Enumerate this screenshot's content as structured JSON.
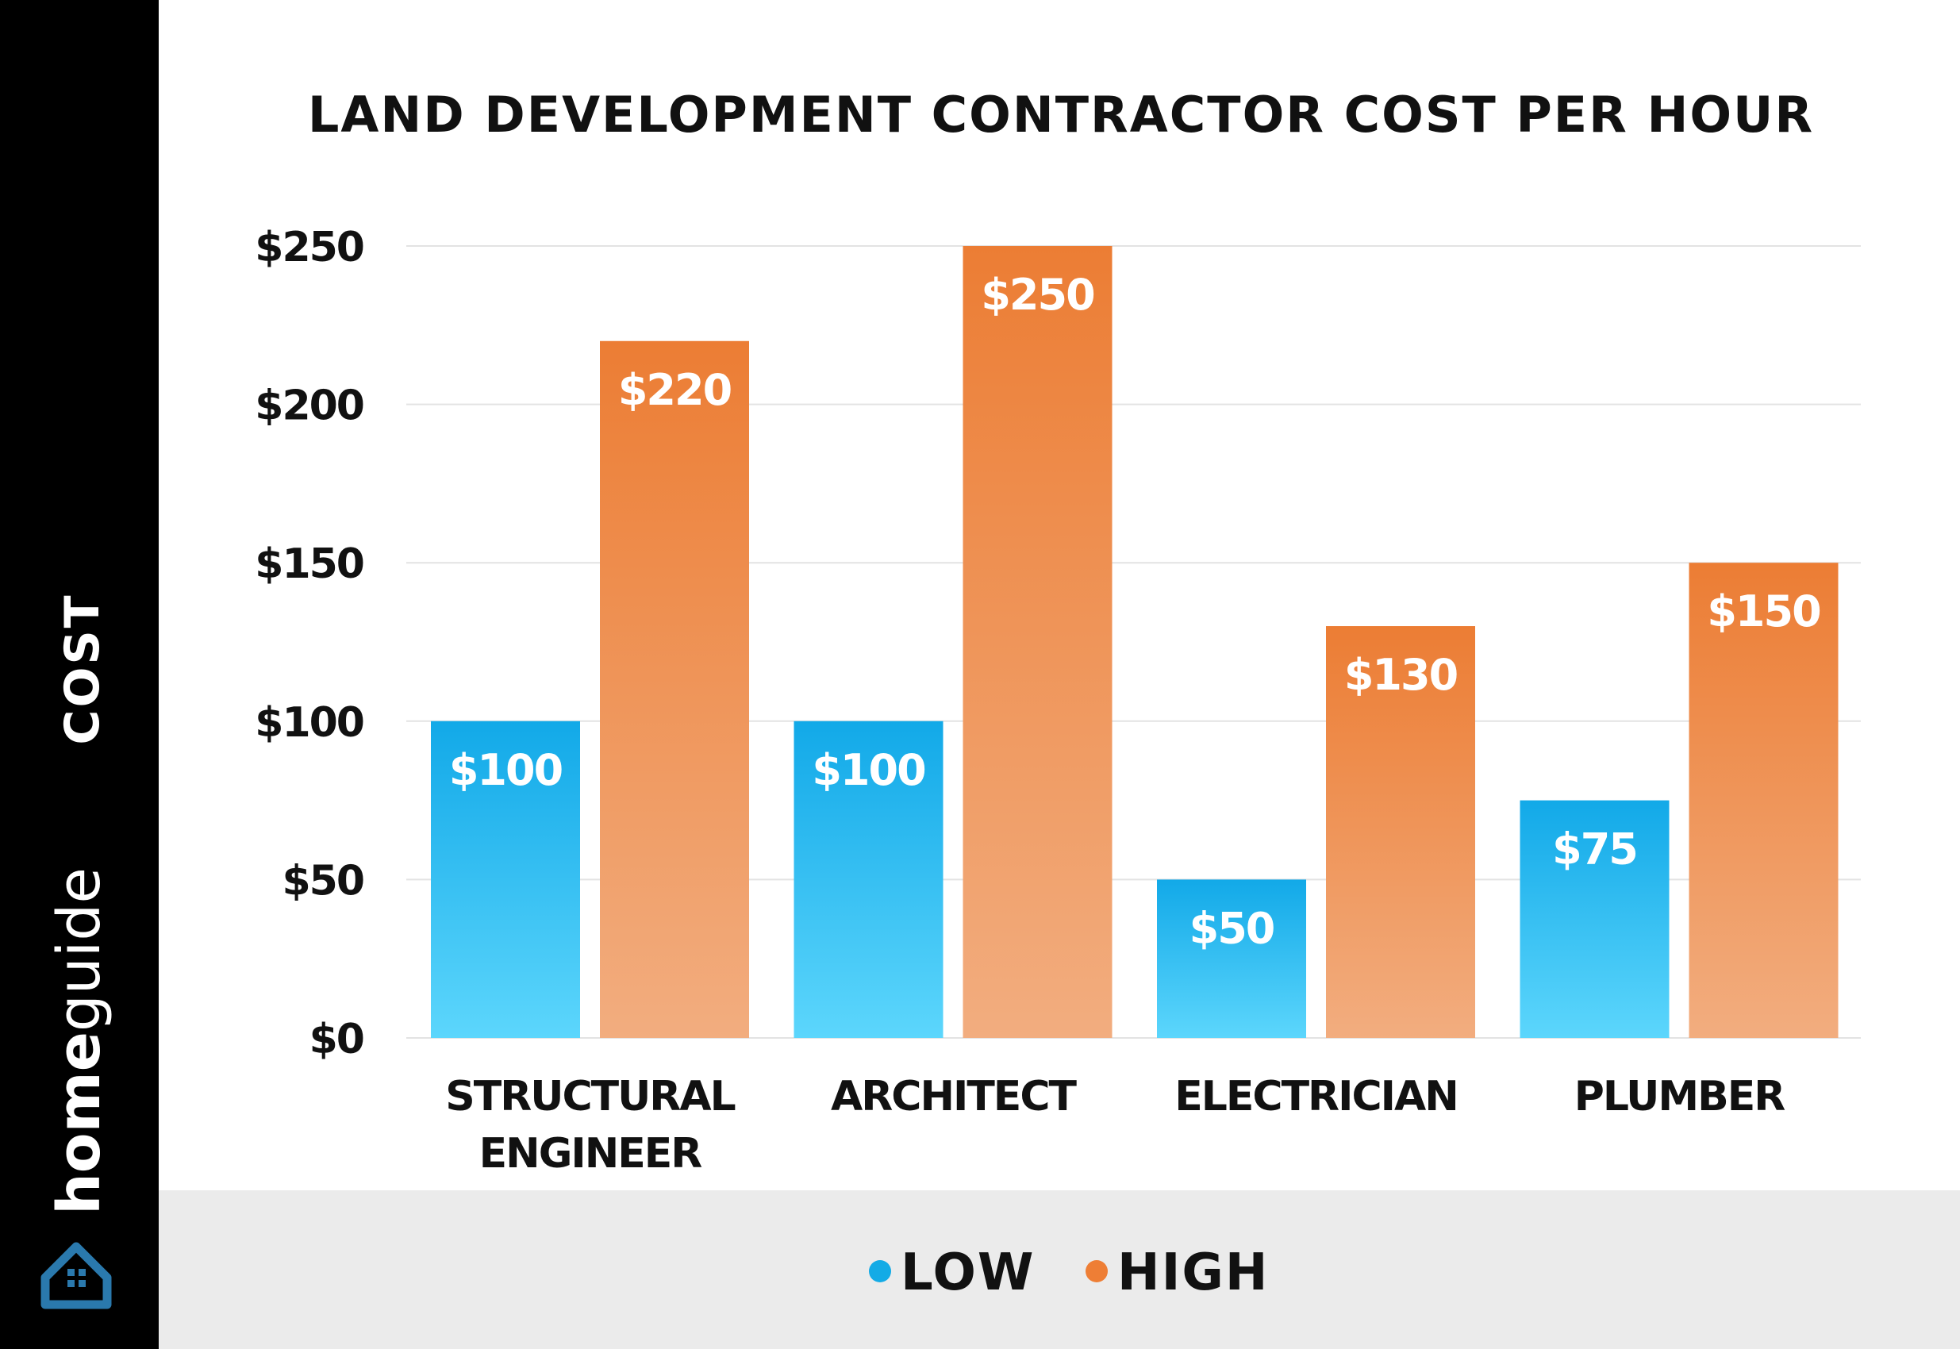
{
  "brand": {
    "name_bold": "home",
    "name_light": "guide",
    "logo_icon": "house-icon"
  },
  "colors": {
    "low_top": "#12a9e8",
    "low_bottom": "#5cd6fc",
    "high_top": "#ec7d34",
    "high_bottom": "#f2ad7f",
    "grid": "#e3e3e3",
    "text": "#111111"
  },
  "legend": {
    "items": [
      {
        "label": "LOW",
        "color": "#13abe6"
      },
      {
        "label": "HIGH",
        "color": "#ee7e35"
      }
    ]
  },
  "chart_data": {
    "type": "bar",
    "title": "LAND DEVELOPMENT CONTRACTOR COST PER HOUR",
    "ylabel": "COST",
    "xlabel": "",
    "ylim": [
      0,
      250
    ],
    "yticks": [
      0,
      50,
      100,
      150,
      200,
      250
    ],
    "ytick_labels": [
      "$0",
      "$50",
      "$100",
      "$150",
      "$200",
      "$250"
    ],
    "categories": [
      [
        "STRUCTURAL",
        "ENGINEER"
      ],
      [
        "ARCHITECT"
      ],
      [
        "ELECTRICIAN"
      ],
      [
        "PLUMBER"
      ]
    ],
    "series": [
      {
        "name": "LOW",
        "values": [
          100,
          100,
          50,
          75
        ],
        "labels": [
          "$100",
          "$100",
          "$50",
          "$75"
        ]
      },
      {
        "name": "HIGH",
        "values": [
          220,
          250,
          130,
          150
        ],
        "labels": [
          "$220",
          "$250",
          "$130",
          "$150"
        ]
      }
    ],
    "grid": true,
    "legend_position": "bottom"
  }
}
